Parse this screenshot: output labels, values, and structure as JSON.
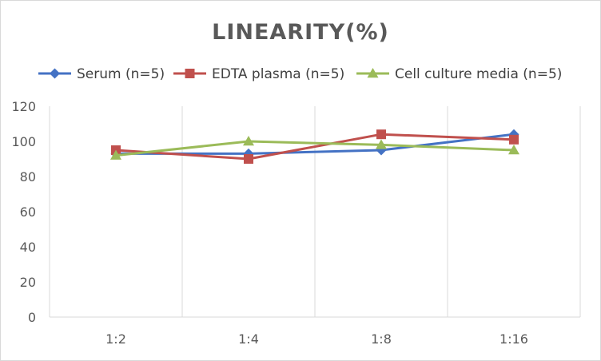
{
  "chart_data": {
    "type": "line",
    "title": "LINEARITY(%)",
    "xlabel": "",
    "ylabel": "",
    "categories": [
      "1:2",
      "1:4",
      "1:8",
      "1:16"
    ],
    "ylim": [
      0,
      120
    ],
    "yticks": [
      0,
      20,
      40,
      60,
      80,
      100,
      120
    ],
    "grid": "vertical",
    "legend_position": "top",
    "series": [
      {
        "name": "Serum (n=5)",
        "values": [
          93,
          93,
          95,
          104
        ],
        "color": "#4472c4",
        "marker": "diamond"
      },
      {
        "name": "EDTA plasma (n=5)",
        "values": [
          95,
          90,
          104,
          101
        ],
        "color": "#c0504d",
        "marker": "square"
      },
      {
        "name": "Cell culture media (n=5)",
        "values": [
          92,
          100,
          98,
          95
        ],
        "color": "#9bbb59",
        "marker": "triangle"
      }
    ]
  }
}
